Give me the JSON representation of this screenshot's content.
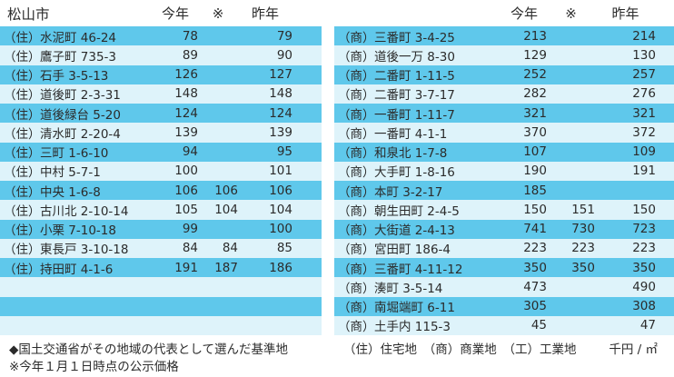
{
  "title": "松山市",
  "columns": [
    "今年",
    "※",
    "昨年"
  ],
  "left_table": {
    "category_code": "（住）",
    "rows": [
      {
        "cat": "（住）",
        "name": "水泥町 46-24",
        "y1": "78",
        "note": "",
        "y2": "79"
      },
      {
        "cat": "（住）",
        "name": "鷹子町 735-3",
        "y1": "89",
        "note": "",
        "y2": "90"
      },
      {
        "cat": "（住）",
        "name": "石手 3-5-13",
        "y1": "126",
        "note": "",
        "y2": "127"
      },
      {
        "cat": "（住）",
        "name": "道後町 2-3-31",
        "y1": "148",
        "note": "",
        "y2": "148"
      },
      {
        "cat": "（住）",
        "name": "道後緑台 5-20",
        "y1": "124",
        "note": "",
        "y2": "124"
      },
      {
        "cat": "（住）",
        "name": "清水町 2-20-4",
        "y1": "139",
        "note": "",
        "y2": "139"
      },
      {
        "cat": "（住）",
        "name": "三町 1-6-10",
        "y1": "94",
        "note": "",
        "y2": "95"
      },
      {
        "cat": "（住）",
        "name": "中村 5-7-1",
        "y1": "100",
        "note": "",
        "y2": "101"
      },
      {
        "cat": "（住）",
        "name": "中央 1-6-8",
        "y1": "106",
        "note": "106",
        "y2": "106"
      },
      {
        "cat": "（住）",
        "name": "古川北 2-10-14",
        "y1": "105",
        "note": "104",
        "y2": "104"
      },
      {
        "cat": "（住）",
        "name": "小栗 7-10-18",
        "y1": "99",
        "note": "",
        "y2": "100"
      },
      {
        "cat": "（住）",
        "name": "東長戸 3-10-18",
        "y1": "84",
        "note": "84",
        "y2": "85"
      },
      {
        "cat": "（住）",
        "name": "持田町 4-1-6",
        "y1": "191",
        "note": "187",
        "y2": "186"
      },
      {
        "cat": "",
        "name": "",
        "y1": "",
        "note": "",
        "y2": ""
      },
      {
        "cat": "",
        "name": "",
        "y1": "",
        "note": "",
        "y2": ""
      },
      {
        "cat": "",
        "name": "",
        "y1": "",
        "note": "",
        "y2": ""
      }
    ]
  },
  "right_table": {
    "category_code": "（商）",
    "rows": [
      {
        "cat": "（商）",
        "name": "三番町 3-4-25",
        "y1": "213",
        "note": "",
        "y2": "214"
      },
      {
        "cat": "（商）",
        "name": "道後一万 8-30",
        "y1": "129",
        "note": "",
        "y2": "130"
      },
      {
        "cat": "（商）",
        "name": "二番町 1-11-5",
        "y1": "252",
        "note": "",
        "y2": "257"
      },
      {
        "cat": "（商）",
        "name": "二番町 3-7-17",
        "y1": "282",
        "note": "",
        "y2": "276"
      },
      {
        "cat": "（商）",
        "name": "一番町 1-11-7",
        "y1": "321",
        "note": "",
        "y2": "321"
      },
      {
        "cat": "（商）",
        "name": "一番町 4-1-1",
        "y1": "370",
        "note": "",
        "y2": "372"
      },
      {
        "cat": "（商）",
        "name": "和泉北 1-7-8",
        "y1": "107",
        "note": "",
        "y2": "109"
      },
      {
        "cat": "（商）",
        "name": "大手町 1-8-16",
        "y1": "190",
        "note": "",
        "y2": "191"
      },
      {
        "cat": "（商）",
        "name": "本町 3-2-17",
        "y1": "185",
        "note": "",
        "y2": ""
      },
      {
        "cat": "（商）",
        "name": "朝生田町 2-4-5",
        "y1": "150",
        "note": "151",
        "y2": "150"
      },
      {
        "cat": "（商）",
        "name": "大街道 2-4-13",
        "y1": "741",
        "note": "730",
        "y2": "723"
      },
      {
        "cat": "（商）",
        "name": "宮田町 186-4",
        "y1": "223",
        "note": "223",
        "y2": "223"
      },
      {
        "cat": "（商）",
        "name": "三番町 4-11-12",
        "y1": "350",
        "note": "350",
        "y2": "350"
      },
      {
        "cat": "（商）",
        "name": "湊町 3-5-14",
        "y1": "473",
        "note": "",
        "y2": "490"
      },
      {
        "cat": "（商）",
        "name": "南堀端町 6-11",
        "y1": "305",
        "note": "",
        "y2": "308"
      },
      {
        "cat": "（商）",
        "name": "土手内 115-3",
        "y1": "45",
        "note": "",
        "y2": "47"
      }
    ]
  },
  "footer": {
    "source_note": "◆国土交通省がその地域の代表として選んだ基準地",
    "legend": "（住）住宅地　（商）商業地　（工）工業地",
    "unit": "千円 / ㎡",
    "date_note": "※今年１月１日時点の公示価格"
  },
  "colors": {
    "stripe_dark": "#5fc8eb",
    "stripe_light": "#def3fa",
    "text": "#2b2b2b",
    "background": "#ffffff"
  }
}
